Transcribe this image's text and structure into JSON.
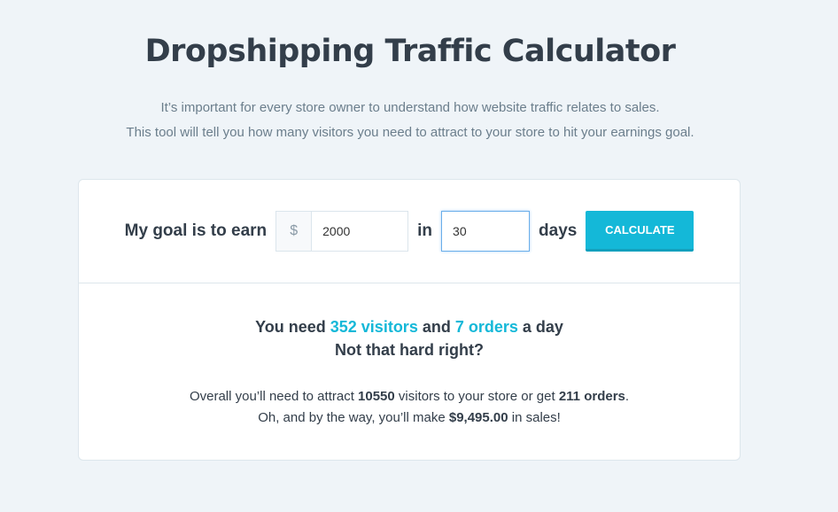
{
  "title": "Dropshipping Traffic Calculator",
  "subtitle": [
    "It’s important for every store owner to understand how website traffic relates to sales.",
    "This tool will tell you how many visitors you need to attract to your store to hit your earnings goal."
  ],
  "form": {
    "label_goal": "My goal is to earn",
    "currency": "$",
    "amount": "2000",
    "label_in": "in",
    "days": "30",
    "label_days": "days",
    "button": "CALCULATE"
  },
  "result": {
    "p1": "You need ",
    "visitors_day": "352 visitors",
    "p2": " and ",
    "orders_day": "7 orders",
    "p3": " a day",
    "line2": "Not that hard right?"
  },
  "details": {
    "a": "Overall you’ll need to attract ",
    "visitors": "10550",
    "b": " visitors to your store or get ",
    "orders": "211 orders",
    "c": ".",
    "d": "Oh, and by the way, you’ll make ",
    "sales": "$9,495.00",
    "e": " in sales!"
  },
  "colors": {
    "accent": "#14b8d8",
    "text": "#333e4a",
    "background": "#eff4f8"
  }
}
